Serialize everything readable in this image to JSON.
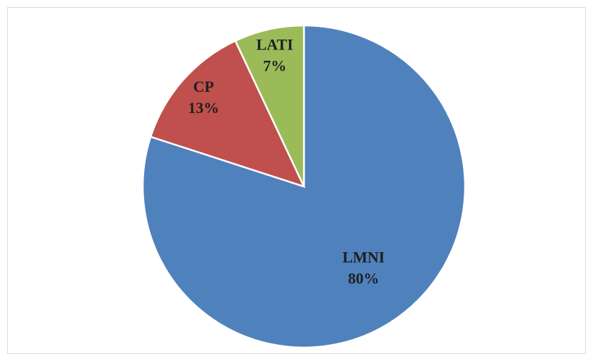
{
  "chart_data": {
    "type": "pie",
    "categories": [
      "LMNI",
      "CP",
      "LATI"
    ],
    "values": [
      80,
      13,
      7
    ],
    "value_labels": [
      "80%",
      "13%",
      "7%"
    ],
    "colors": [
      "#4f81bd",
      "#c0504d",
      "#9bbb59"
    ]
  }
}
